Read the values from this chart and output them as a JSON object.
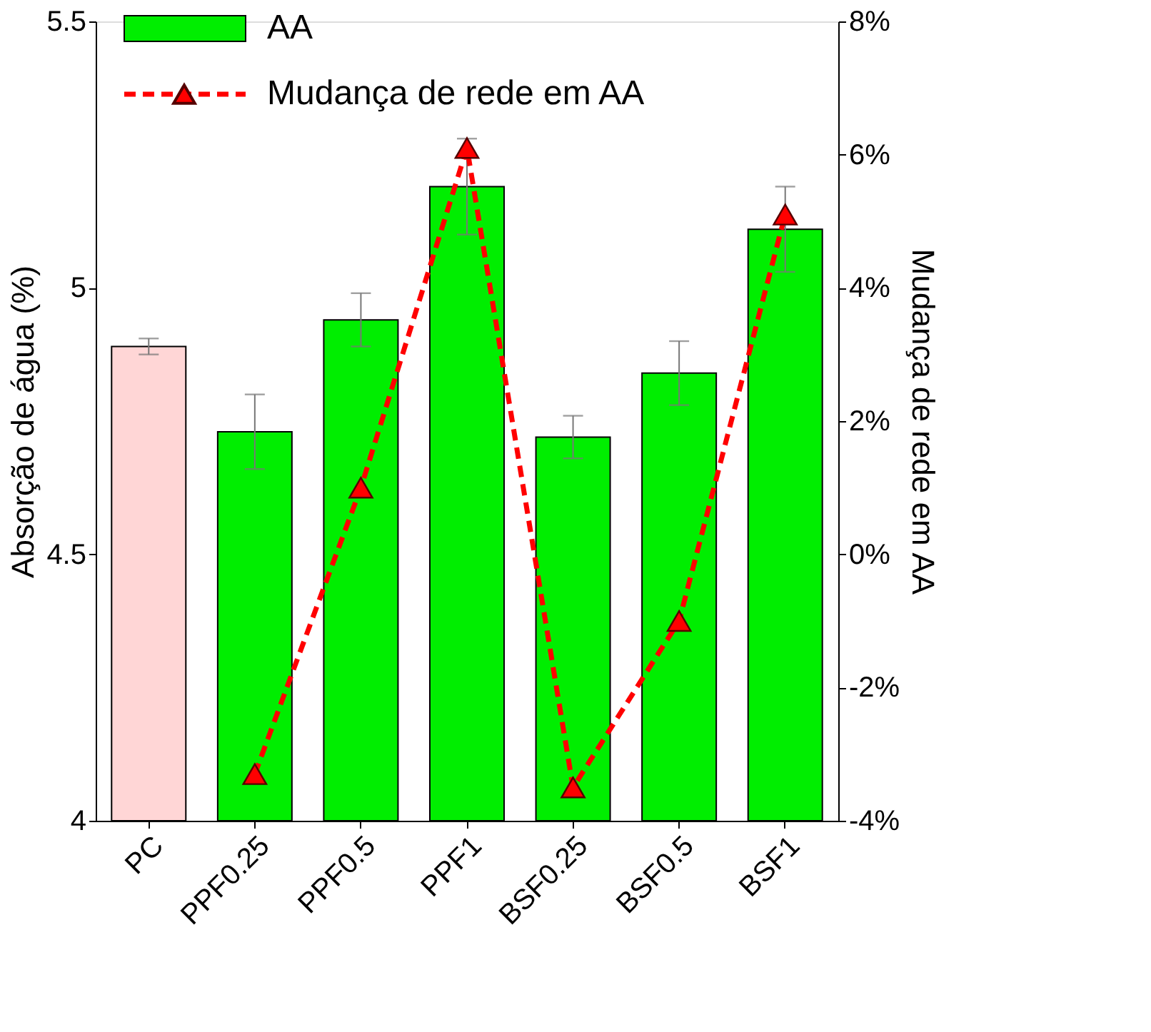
{
  "chart_data": {
    "type": "bar",
    "categories": [
      "PC",
      "PPF0.25",
      "PPF0.5",
      "PPF1",
      "BSF0.25",
      "BSF0.5",
      "BSF1"
    ],
    "ylabel": "Absorção de água (%)",
    "y2label": "Mudança de rede em AA",
    "ylim": [
      4,
      5.5
    ],
    "yticks": [
      4,
      4.5,
      5,
      5.5
    ],
    "y2lim": [
      -4,
      8
    ],
    "y2ticks": [
      {
        "value": -4,
        "label": "-4%"
      },
      {
        "value": -2,
        "label": "-2%"
      },
      {
        "value": 0,
        "label": "0%"
      },
      {
        "value": 2,
        "label": "2%"
      },
      {
        "value": 4,
        "label": "4%"
      },
      {
        "value": 6,
        "label": "6%"
      },
      {
        "value": 8,
        "label": "8%"
      }
    ],
    "grid": false,
    "legend": "top left",
    "series": [
      {
        "name": "AA",
        "color": "#00ee00",
        "colors": [
          "#ffd6d6",
          "#00ee00",
          "#00ee00",
          "#00ee00",
          "#00ee00",
          "#00ee00",
          "#00ee00"
        ],
        "values": [
          4.89,
          4.73,
          4.94,
          5.19,
          4.72,
          4.84,
          5.11
        ],
        "errors": [
          0.015,
          0.07,
          0.05,
          0.09,
          0.04,
          0.06,
          0.08
        ]
      },
      {
        "name": "Mudança de rede em AA",
        "type": "line",
        "axis": "y2",
        "color": "#ff0000",
        "marker": "triangle",
        "line_style": "dashed",
        "values": [
          null,
          -3.3,
          1.0,
          6.1,
          -3.5,
          -1.0,
          5.1
        ]
      }
    ]
  }
}
